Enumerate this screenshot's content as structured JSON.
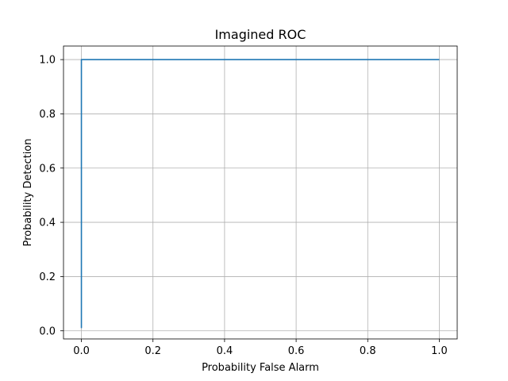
{
  "chart_data": {
    "type": "line",
    "title": "Imagined ROC",
    "xlabel": "Probability False Alarm",
    "ylabel": "Probability Detection",
    "xlim": [
      -0.05,
      1.05
    ],
    "ylim": [
      -0.03,
      1.05
    ],
    "xticks": [
      0.0,
      0.2,
      0.4,
      0.6,
      0.8,
      1.0
    ],
    "yticks": [
      0.0,
      0.2,
      0.4,
      0.6,
      0.8,
      1.0
    ],
    "xtick_labels": [
      "0.0",
      "0.2",
      "0.4",
      "0.6",
      "0.8",
      "1.0"
    ],
    "ytick_labels": [
      "0.0",
      "0.2",
      "0.4",
      "0.6",
      "0.8",
      "1.0"
    ],
    "grid": true,
    "series": [
      {
        "color": "#1f77b4",
        "x": [
          0.0,
          0.0,
          1.0
        ],
        "y": [
          0.01,
          1.0,
          1.0
        ]
      }
    ]
  }
}
